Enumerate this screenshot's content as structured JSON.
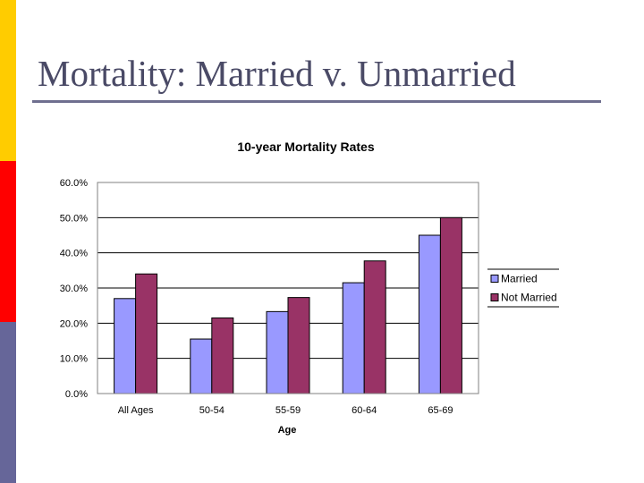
{
  "slide": {
    "title": "Mortality: Married v. Unmarried",
    "accent_colors": [
      "#ffcc00",
      "#ff0000",
      "#666699"
    ]
  },
  "chart_data": {
    "type": "bar",
    "title": "10-year Mortality Rates",
    "xlabel": "Age",
    "ylabel": "",
    "categories": [
      "All Ages",
      "50-54",
      "55-59",
      "60-64",
      "65-69"
    ],
    "series": [
      {
        "name": "Married",
        "values": [
          27.0,
          15.5,
          23.3,
          31.5,
          45.0
        ],
        "color": "#9999ff"
      },
      {
        "name": "Not Married",
        "values": [
          34.0,
          21.5,
          27.3,
          37.7,
          50.0
        ],
        "color": "#993366"
      }
    ],
    "yticks": [
      "0.0%",
      "10.0%",
      "20.0%",
      "30.0%",
      "40.0%",
      "50.0%",
      "60.0%"
    ],
    "ylim": [
      0,
      60
    ],
    "grid": true,
    "legend": "right"
  }
}
